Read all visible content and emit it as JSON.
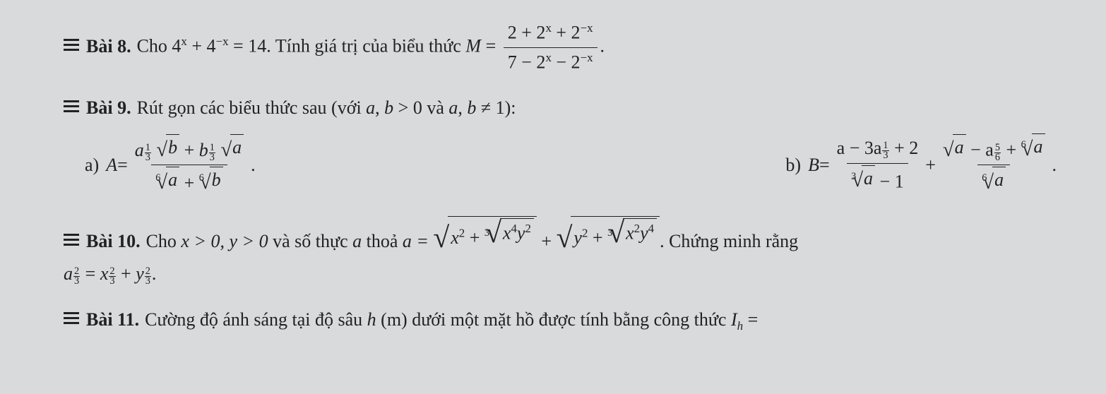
{
  "ex8": {
    "label": "Bài 8.",
    "pre": "Cho ",
    "eq_lhs": "4",
    "eq_exp1": "x",
    "eq_plus": " + 4",
    "eq_exp2": "−x",
    "eq_rhs": " = 14",
    "mid": ". Tính giá trị của biểu thức ",
    "Mvar": "M",
    "equals": " = ",
    "num": "2 + 2",
    "num_exp1": "x",
    "num_plus": " + 2",
    "num_exp2": "−x",
    "den": "7 − 2",
    "den_exp1": "x",
    "den_plus": " − 2",
    "den_exp2": "−x",
    "period": "."
  },
  "ex9": {
    "label": "Bài 9.",
    "text": "Rút gọn các biểu thức sau (với ",
    "cond_a": "a",
    "cond_comma": ", ",
    "cond_b": "b",
    "cond_gt": " > 0 và ",
    "cond_ab": "a, b",
    "cond_neq": " ≠ 1):",
    "a": {
      "label": "a)",
      "A": "A",
      "eq": " = ",
      "num_a": "a",
      "exp_a": "1",
      "exp_ad": "3",
      "rad1_body": "b",
      "plus": " + ",
      "num_b": "b",
      "exp_b": "1",
      "exp_bd": "3",
      "rad2_body": "a",
      "den_idx1": "6",
      "den_r1": "a",
      "den_plus": " + ",
      "den_idx2": "6",
      "den_r2": "b",
      "period": "."
    },
    "b": {
      "label": "b)",
      "B": "B",
      "eq": " = ",
      "f1_num_a": "a − 3a",
      "f1_exp_n": "1",
      "f1_exp_d": "3",
      "f1_num_end": " + 2",
      "f1_den_idx": "3",
      "f1_den_r": "a",
      "f1_den_end": " − 1",
      "plus": " + ",
      "f2_num_r1": "a",
      "f2_num_minus": " − a",
      "f2_exp_n": "5",
      "f2_exp_d": "6",
      "f2_num_plus": " + ",
      "f2_num_idx2": "6",
      "f2_num_r2": "a",
      "f2_den_idx": "6",
      "f2_den_r": "a",
      "period": "."
    }
  },
  "ex10": {
    "label": "Bài 10.",
    "text1": "Cho ",
    "xgt": "x > 0, y > 0",
    "text2": " và số thực ",
    "avar": "a",
    "text3": " thoả ",
    "aeq": "a = ",
    "r1_a": "x",
    "r1_exp": "2",
    "r1_plus": " + ",
    "r1_inner_idx": "3",
    "r1_inner_body1": "x",
    "r1_inner_e1": "4",
    "r1_inner_body2": "y",
    "r1_inner_e2": "2",
    "big_plus": " + ",
    "r2_a": "y",
    "r2_exp": "2",
    "r2_plus": " + ",
    "r2_inner_idx": "3",
    "r2_inner_body1": "x",
    "r2_inner_e1": "2",
    "r2_inner_body2": "y",
    "r2_inner_e2": "4",
    "text4": ". Chứng minh rằng",
    "line2_a": "a",
    "line2_ae_n": "2",
    "line2_ae_d": "3",
    "line2_eq": " = ",
    "line2_x": "x",
    "line2_xe_n": "2",
    "line2_xe_d": "3",
    "line2_plus": " + ",
    "line2_y": "y",
    "line2_ye_n": "2",
    "line2_ye_d": "3",
    "line2_period": "."
  },
  "ex11": {
    "label": "Bài 11.",
    "text": "Cường độ ánh sáng tại độ sâu ",
    "h": "h",
    "unit": " (m) dưới một mặt hồ được tính bằng công thức ",
    "I": "I",
    "Isub": "h",
    "eq": " ="
  }
}
